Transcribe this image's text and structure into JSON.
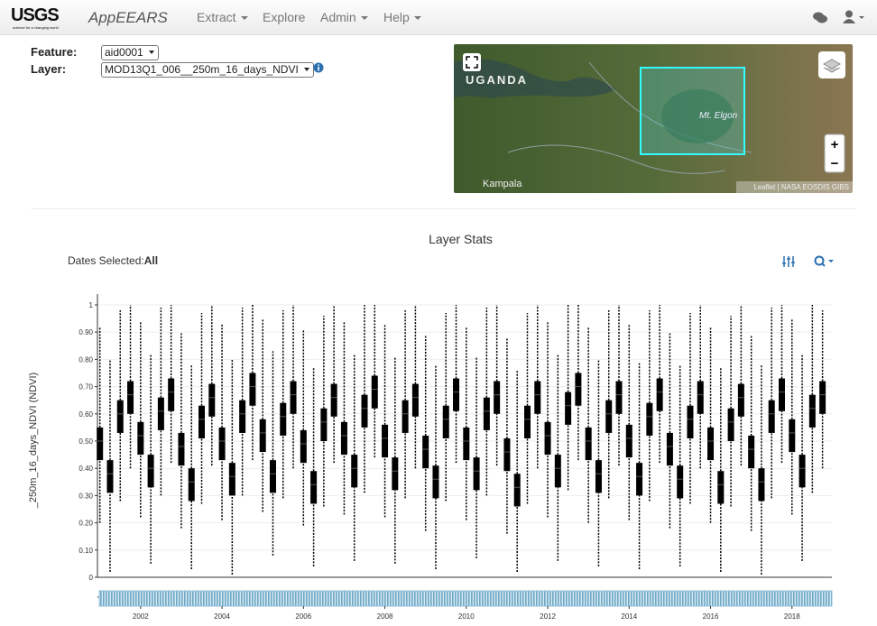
{
  "header": {
    "logo": "USGS",
    "tagline": "science for a changing world",
    "app": "AppEEARS",
    "menu": [
      "Extract",
      "Explore",
      "Admin",
      "Help"
    ]
  },
  "form": {
    "feature_label": "Feature:",
    "feature_value": "aid0001",
    "layer_label": "Layer:",
    "layer_value": "MOD13Q1_006__250m_16_days_NDVI"
  },
  "map": {
    "country": "UGANDA",
    "peak": "Mt. Elgon",
    "city": "Kampala",
    "attribution": "Leaflet | NASA EOSDIS GIBS",
    "zoom_in": "+",
    "zoom_out": "−"
  },
  "dates": {
    "label": "Dates Selected:",
    "value": "All"
  },
  "chart_data": {
    "type": "box",
    "title": "Layer Stats",
    "y_label": "_250m_16_days_NDVI (NDVI)",
    "color": "#000000",
    "brush_color": "#8fc1da",
    "grid": true,
    "ylim": [
      0,
      1
    ],
    "yticks": [
      0,
      {
        "value": 0.1,
        "label": "0.10"
      },
      {
        "value": 0.2,
        "label": "0.20"
      },
      {
        "value": 0.3,
        "label": "0.30"
      },
      {
        "value": 0.4,
        "label": "0.40"
      },
      {
        "value": 0.5,
        "label": "0.50"
      },
      {
        "value": 0.6,
        "label": "0.60"
      },
      {
        "value": 0.7,
        "label": "0.70"
      },
      {
        "value": 0.8,
        "label": "0.80"
      },
      {
        "value": 0.9,
        "label": "0.90"
      },
      1
    ],
    "xlim": [
      2000.94,
      2018.98
    ],
    "xticks": [
      2002,
      2004,
      2006,
      2008,
      2010,
      2012,
      2014,
      2016,
      2018
    ],
    "x": [
      2001,
      2001.25,
      2001.5,
      2001.75,
      2002,
      2002.25,
      2002.5,
      2002.75,
      2003,
      2003.25,
      2003.5,
      2003.75,
      2004,
      2004.25,
      2004.5,
      2004.75,
      2005,
      2005.25,
      2005.5,
      2005.75,
      2006,
      2006.25,
      2006.5,
      2006.75,
      2007,
      2007.25,
      2007.5,
      2007.75,
      2008,
      2008.25,
      2008.5,
      2008.75,
      2009,
      2009.25,
      2009.5,
      2009.75,
      2010,
      2010.25,
      2010.5,
      2010.75,
      2011,
      2011.25,
      2011.5,
      2011.75,
      2012,
      2012.25,
      2012.5,
      2012.75,
      2013,
      2013.25,
      2013.5,
      2013.75,
      2014,
      2014.25,
      2014.5,
      2014.75,
      2015,
      2015.25,
      2015.5,
      2015.75,
      2016,
      2016.25,
      2016.5,
      2016.75,
      2017,
      2017.25,
      2017.5,
      2017.75,
      2018,
      2018.25,
      2018.5,
      2018.75
    ],
    "median": [
      0.5,
      0.38,
      0.6,
      0.67,
      0.52,
      0.4,
      0.61,
      0.68,
      0.48,
      0.35,
      0.58,
      0.66,
      0.5,
      0.37,
      0.6,
      0.7,
      0.53,
      0.38,
      0.59,
      0.67,
      0.49,
      0.34,
      0.57,
      0.66,
      0.52,
      0.4,
      0.62,
      0.69,
      0.51,
      0.39,
      0.6,
      0.66,
      0.47,
      0.36,
      0.58,
      0.68,
      0.5,
      0.39,
      0.61,
      0.67,
      0.46,
      0.33,
      0.58,
      0.67,
      0.52,
      0.4,
      0.63,
      0.7,
      0.5,
      0.38,
      0.6,
      0.67,
      0.51,
      0.37,
      0.59,
      0.68,
      0.48,
      0.36,
      0.58,
      0.67,
      0.5,
      0.34,
      0.57,
      0.66,
      0.47,
      0.35,
      0.6,
      0.68,
      0.53,
      0.4,
      0.62,
      0.67
    ],
    "q1": [
      0.43,
      0.31,
      0.53,
      0.6,
      0.45,
      0.33,
      0.54,
      0.61,
      0.41,
      0.28,
      0.51,
      0.59,
      0.43,
      0.3,
      0.53,
      0.63,
      0.46,
      0.31,
      0.52,
      0.6,
      0.42,
      0.27,
      0.5,
      0.59,
      0.45,
      0.33,
      0.55,
      0.62,
      0.44,
      0.32,
      0.53,
      0.59,
      0.4,
      0.29,
      0.51,
      0.61,
      0.43,
      0.32,
      0.54,
      0.6,
      0.39,
      0.26,
      0.51,
      0.6,
      0.45,
      0.33,
      0.56,
      0.63,
      0.43,
      0.31,
      0.53,
      0.6,
      0.44,
      0.3,
      0.52,
      0.61,
      0.41,
      0.29,
      0.51,
      0.6,
      0.43,
      0.27,
      0.5,
      0.59,
      0.4,
      0.28,
      0.53,
      0.61,
      0.46,
      0.33,
      0.55,
      0.6
    ],
    "q3": [
      0.55,
      0.43,
      0.65,
      0.72,
      0.57,
      0.45,
      0.66,
      0.73,
      0.53,
      0.4,
      0.63,
      0.71,
      0.55,
      0.42,
      0.65,
      0.75,
      0.58,
      0.43,
      0.64,
      0.72,
      0.54,
      0.39,
      0.62,
      0.71,
      0.57,
      0.45,
      0.67,
      0.74,
      0.56,
      0.44,
      0.65,
      0.71,
      0.52,
      0.41,
      0.63,
      0.73,
      0.55,
      0.44,
      0.66,
      0.72,
      0.51,
      0.38,
      0.63,
      0.72,
      0.57,
      0.45,
      0.68,
      0.75,
      0.55,
      0.43,
      0.65,
      0.72,
      0.56,
      0.42,
      0.64,
      0.73,
      0.53,
      0.41,
      0.63,
      0.72,
      0.55,
      0.39,
      0.62,
      0.71,
      0.52,
      0.4,
      0.65,
      0.73,
      0.58,
      0.45,
      0.67,
      0.72
    ],
    "min": [
      0.2,
      0.02,
      0.28,
      0.4,
      0.22,
      0.05,
      0.3,
      0.42,
      0.18,
      0.03,
      0.27,
      0.41,
      0.21,
      0.01,
      0.3,
      0.43,
      0.24,
      0.08,
      0.29,
      0.4,
      0.19,
      0.04,
      0.26,
      0.42,
      0.23,
      0.06,
      0.31,
      0.44,
      0.22,
      0.05,
      0.29,
      0.4,
      0.17,
      0.03,
      0.28,
      0.42,
      0.21,
      0.07,
      0.3,
      0.41,
      0.16,
      0.02,
      0.27,
      0.4,
      0.22,
      0.06,
      0.32,
      0.43,
      0.2,
      0.04,
      0.29,
      0.41,
      0.21,
      0.03,
      0.28,
      0.42,
      0.18,
      0.04,
      0.27,
      0.4,
      0.2,
      0.02,
      0.26,
      0.41,
      0.17,
      0.01,
      0.29,
      0.42,
      0.23,
      0.06,
      0.31,
      0.4
    ],
    "max": [
      0.92,
      0.8,
      0.98,
      1.0,
      0.94,
      0.82,
      0.99,
      1.0,
      0.9,
      0.78,
      0.97,
      1.0,
      0.93,
      0.8,
      0.99,
      1.0,
      0.95,
      0.83,
      0.98,
      1.0,
      0.91,
      0.77,
      0.96,
      1.0,
      0.94,
      0.82,
      1.0,
      1.0,
      0.93,
      0.81,
      0.98,
      1.0,
      0.89,
      0.78,
      0.97,
      1.0,
      0.92,
      0.81,
      0.99,
      1.0,
      0.88,
      0.76,
      0.97,
      1.0,
      0.94,
      0.82,
      1.0,
      1.0,
      0.92,
      0.8,
      0.98,
      1.0,
      0.93,
      0.79,
      0.98,
      1.0,
      0.9,
      0.78,
      0.97,
      1.0,
      0.92,
      0.77,
      0.96,
      1.0,
      0.89,
      0.78,
      0.99,
      1.0,
      0.95,
      0.82,
      1.0,
      0.98
    ]
  }
}
